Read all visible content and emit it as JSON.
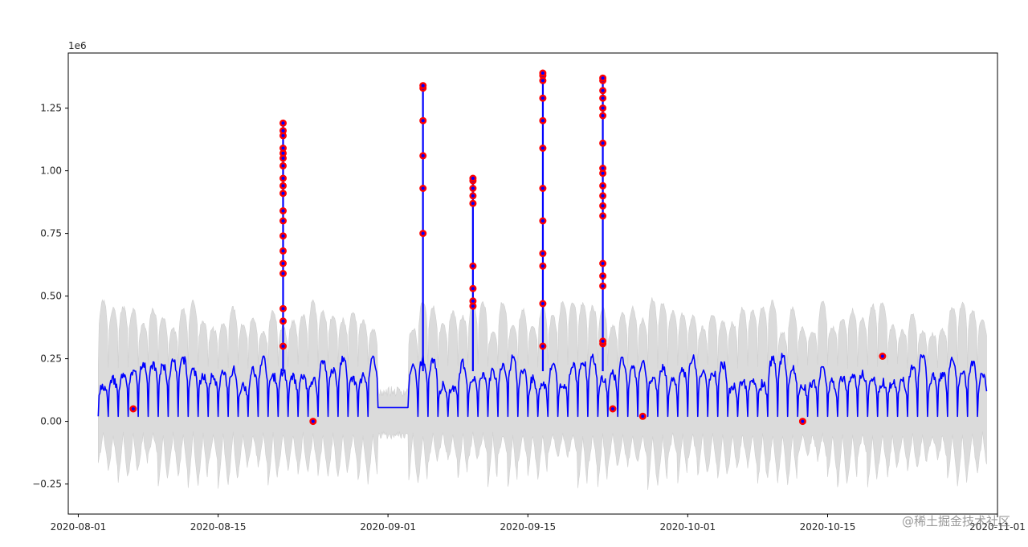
{
  "chart_data": {
    "type": "line",
    "title": "",
    "xlabel": "",
    "ylabel": "",
    "y_offset_label": "1e6",
    "x_range": [
      "2020-07-31",
      "2020-11-01"
    ],
    "ylim": [
      -0.37,
      1.47
    ],
    "grid": false,
    "legend": "none",
    "x_ticks": [
      "2020-08-01",
      "2020-08-15",
      "2020-09-01",
      "2020-09-15",
      "2020-10-01",
      "2020-10-15",
      "2020-11-01"
    ],
    "y_ticks": [
      -0.25,
      0.0,
      0.25,
      0.5,
      0.75,
      1.0,
      1.25
    ],
    "y_tick_labels": [
      "−0.25",
      "0.00",
      "0.25",
      "0.50",
      "0.75",
      "1.00",
      "1.25"
    ],
    "colors": {
      "series": "#0000ff",
      "band": "#cfcfcf",
      "anomaly": "#ff0000"
    },
    "series": {
      "start": "2020-08-03",
      "end": "2020-10-31",
      "daily_low": 0.02,
      "daily_high_range": [
        0.14,
        0.26
      ],
      "band_upper_range": [
        0.35,
        0.49
      ],
      "band_lower_range": [
        -0.13,
        -0.27
      ],
      "gap": {
        "from": "2020-08-31",
        "to": "2020-09-03",
        "value": 0.055
      }
    },
    "spikes": [
      {
        "date": "2020-08-21",
        "peak": 1.19
      },
      {
        "date": "2020-09-04",
        "peak": 1.34
      },
      {
        "date": "2020-09-09",
        "peak": 0.97
      },
      {
        "date": "2020-09-16",
        "peak": 1.39
      },
      {
        "date": "2020-09-22",
        "peak": 1.37
      }
    ],
    "anomaly_points": [
      {
        "date": "2020-08-06",
        "y": 0.05
      },
      {
        "date": "2020-08-21",
        "y": [
          0.3,
          0.4,
          0.45,
          0.59,
          0.63,
          0.68,
          0.74,
          0.8,
          0.84,
          0.91,
          0.94,
          0.97,
          1.02,
          1.05,
          1.07,
          1.09,
          1.14,
          1.16,
          1.19
        ]
      },
      {
        "date": "2020-08-24",
        "y": 0.0
      },
      {
        "date": "2020-09-04",
        "y": [
          0.75,
          0.93,
          1.06,
          1.2,
          1.33,
          1.34
        ]
      },
      {
        "date": "2020-09-09",
        "y": [
          0.46,
          0.48,
          0.53,
          0.62,
          0.87,
          0.9,
          0.93,
          0.96,
          0.97
        ]
      },
      {
        "date": "2020-09-16",
        "y": [
          0.3,
          0.47,
          0.62,
          0.67,
          0.8,
          0.93,
          1.09,
          1.2,
          1.29,
          1.36,
          1.38,
          1.39
        ]
      },
      {
        "date": "2020-09-22",
        "y": [
          0.31,
          0.32,
          0.54,
          0.58,
          0.63,
          0.82,
          0.86,
          0.9,
          0.94,
          0.99,
          1.01,
          1.11,
          1.22,
          1.25,
          1.29,
          1.32,
          1.36,
          1.37
        ]
      },
      {
        "date": "2020-09-23",
        "y": 0.05
      },
      {
        "date": "2020-09-26",
        "y": 0.02
      },
      {
        "date": "2020-10-12",
        "y": 0.0
      },
      {
        "date": "2020-10-20",
        "y": 0.26
      }
    ]
  },
  "watermark": "@稀土掘金技术社区"
}
